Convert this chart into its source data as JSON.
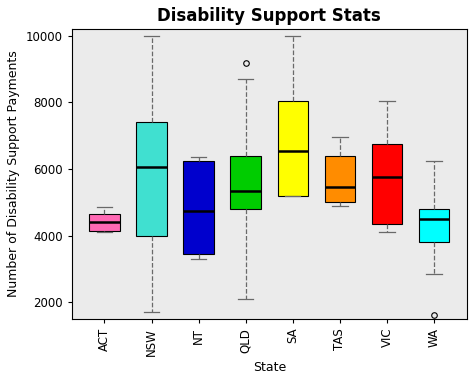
{
  "title": "Disability Support Stats",
  "xlabel": "State",
  "ylabel": "Number of Disability Support Payments",
  "states": [
    "ACT",
    "NSW",
    "NT",
    "QLD",
    "SA",
    "TAS",
    "VIC",
    "WA"
  ],
  "colors": [
    "#FF69B4",
    "#40E0D0",
    "#0000CD",
    "#00CC00",
    "#FFFF00",
    "#FF8C00",
    "#FF0000",
    "#00FFFF"
  ],
  "box_data": {
    "ACT": {
      "whislo": 4100,
      "q1": 4150,
      "med": 4400,
      "q3": 4650,
      "whishi": 4850,
      "fliers": []
    },
    "NSW": {
      "whislo": 1700,
      "q1": 4000,
      "med": 6050,
      "q3": 7400,
      "whishi": 10000,
      "fliers": []
    },
    "NT": {
      "whislo": 3300,
      "q1": 3450,
      "med": 4750,
      "q3": 6250,
      "whishi": 6350,
      "fliers": []
    },
    "QLD": {
      "whislo": 2100,
      "q1": 4800,
      "med": 5350,
      "q3": 6400,
      "whishi": 8700,
      "fliers": [
        9200
      ]
    },
    "SA": {
      "whislo": 5200,
      "q1": 5200,
      "med": 6550,
      "q3": 8050,
      "whishi": 10000,
      "fliers": []
    },
    "TAS": {
      "whislo": 4900,
      "q1": 5000,
      "med": 5450,
      "q3": 6400,
      "whishi": 6950,
      "fliers": []
    },
    "VIC": {
      "whislo": 4100,
      "q1": 4350,
      "med": 5750,
      "q3": 6750,
      "whishi": 8050,
      "fliers": []
    },
    "WA": {
      "whislo": 2850,
      "q1": 3800,
      "med": 4500,
      "q3": 4800,
      "whishi": 6250,
      "fliers": [
        1600
      ]
    }
  },
  "ylim": [
    1500,
    10200
  ],
  "yticks": [
    2000,
    4000,
    6000,
    8000,
    10000
  ],
  "background_color": "#FFFFFF",
  "plot_bg_color": "#EBEBEB",
  "title_fontsize": 12,
  "label_fontsize": 9,
  "tick_fontsize": 8.5,
  "box_width": 0.65
}
